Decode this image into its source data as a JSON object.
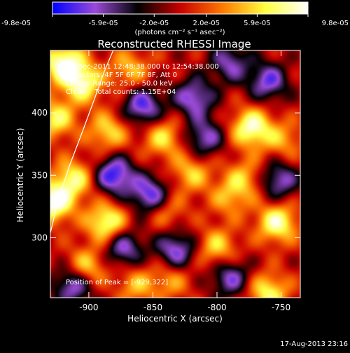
{
  "colorbar": {
    "tick_labels": [
      "-9.8e-05",
      "-5.9e-05",
      "-2.0e-05",
      "2.0e-05",
      "5.9e-05",
      "9.8e-05"
    ],
    "range": [
      -9.8e-05,
      9.8e-05
    ],
    "unit_label": "(photons cm⁻² s⁻¹ asec⁻²)",
    "palette_stops": [
      "#0000ff",
      "#9a4bd8",
      "#000000",
      "#c80000",
      "#ff7a00",
      "#ffff40",
      "#ffffff"
    ]
  },
  "chart_data": {
    "type": "heatmap",
    "title": "Reconstructed RHESSI Image",
    "xlabel": "Heliocentric X (arcsec)",
    "ylabel": "Heliocentric Y (arcsec)",
    "xlim": [
      -930,
      -735
    ],
    "ylim": [
      252,
      450
    ],
    "x_ticks": [
      -900,
      -850,
      -800,
      -750
    ],
    "y_ticks": [
      300,
      350,
      400
    ],
    "x_tick_labels": [
      "-900",
      "-850",
      "-800",
      "-750"
    ],
    "y_tick_labels": [
      "300",
      "350",
      "400"
    ],
    "info_lines": [
      "13-Dec-2011 12:48:38.000 to 12:54:38.000",
      "Detectors: 4F 5F 6F 7F 8F, Att 0",
      "Energy Range: 25.0 - 50.0 keV",
      "Clean    Total counts: 1.15E+04"
    ],
    "peak_label": "Position of Peak = [-929,322]",
    "peak": {
      "x": -929,
      "y": 322
    },
    "limb_arc": [
      {
        "x": -930,
        "y": 304
      },
      {
        "x": -924,
        "y": 330
      },
      {
        "x": -915,
        "y": 358
      },
      {
        "x": -905,
        "y": 385
      },
      {
        "x": -896,
        "y": 410
      },
      {
        "x": -888,
        "y": 433
      },
      {
        "x": -881,
        "y": 450
      }
    ],
    "sources": [
      {
        "x": -920,
        "y": 440,
        "value": 9.4e-05
      },
      {
        "x": -905,
        "y": 424,
        "value": 8.2e-05
      },
      {
        "x": -926,
        "y": 395,
        "value": 6.8e-05
      },
      {
        "x": -928,
        "y": 328,
        "value": 9.8e-05
      },
      {
        "x": -912,
        "y": 347,
        "value": 7.2e-05
      },
      {
        "x": -885,
        "y": 385,
        "value": 6e-05
      },
      {
        "x": -886,
        "y": 312,
        "value": 8.6e-05
      },
      {
        "x": -902,
        "y": 276,
        "value": 6.4e-05
      },
      {
        "x": -868,
        "y": 435,
        "value": 5e-05
      },
      {
        "x": -842,
        "y": 380,
        "value": 6e-05
      },
      {
        "x": -820,
        "y": 352,
        "value": 5.4e-05
      },
      {
        "x": -840,
        "y": 322,
        "value": 4.2e-05
      },
      {
        "x": -800,
        "y": 292,
        "value": 5.8e-05
      },
      {
        "x": -790,
        "y": 332,
        "value": 4.4e-05
      },
      {
        "x": -773,
        "y": 388,
        "value": 9e-05
      },
      {
        "x": -778,
        "y": 348,
        "value": 4.8e-05
      },
      {
        "x": -753,
        "y": 312,
        "value": 8.4e-05
      },
      {
        "x": -760,
        "y": 256,
        "value": 7.2e-05
      },
      {
        "x": -836,
        "y": 266,
        "value": 4e-05
      },
      {
        "x": -863,
        "y": 262,
        "value": 4.6e-05
      },
      {
        "x": -748,
        "y": 378,
        "value": 4.2e-05
      },
      {
        "x": -880,
        "y": 350,
        "value": -9e-05
      },
      {
        "x": -858,
        "y": 405,
        "value": -8e-05
      },
      {
        "x": -852,
        "y": 334,
        "value": -8.6e-05
      },
      {
        "x": -818,
        "y": 412,
        "value": -7.4e-05
      },
      {
        "x": -810,
        "y": 380,
        "value": -6.6e-05
      },
      {
        "x": -832,
        "y": 290,
        "value": -7.4e-05
      },
      {
        "x": -790,
        "y": 268,
        "value": -6.6e-05
      },
      {
        "x": -760,
        "y": 425,
        "value": -7.2e-05
      },
      {
        "x": -752,
        "y": 346,
        "value": -6.8e-05
      },
      {
        "x": -912,
        "y": 262,
        "value": -7.8e-05
      },
      {
        "x": -873,
        "y": 292,
        "value": -7e-05
      },
      {
        "x": -790,
        "y": 440,
        "value": -6.2e-05
      }
    ]
  },
  "footer": {
    "timestamp": "17-Aug-2013 23:16"
  }
}
